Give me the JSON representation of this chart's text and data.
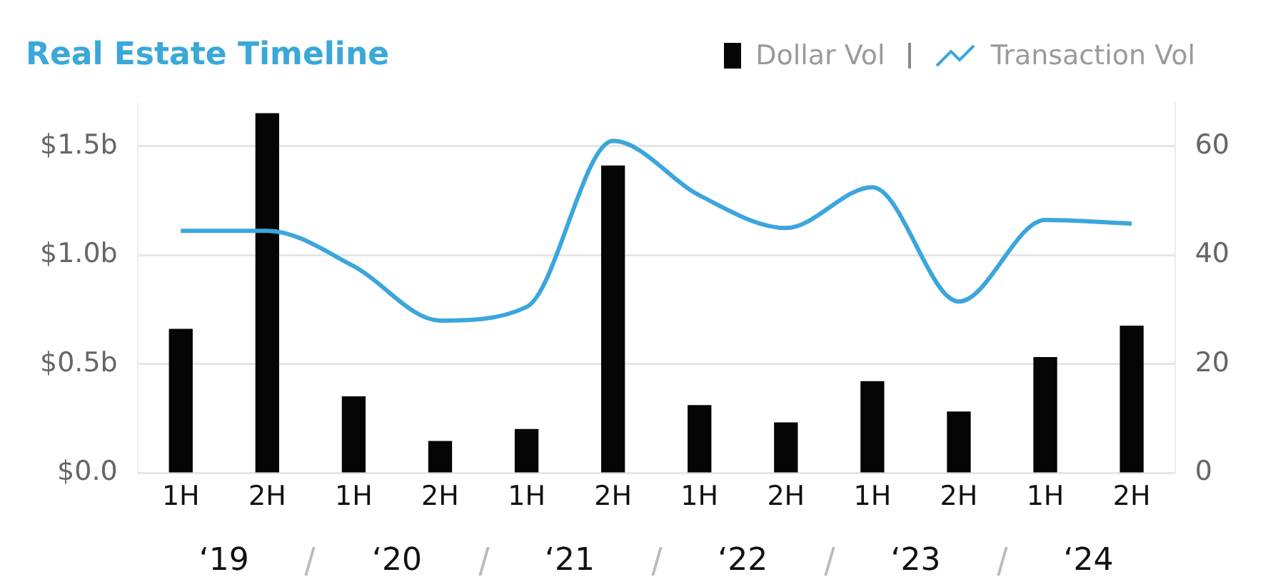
{
  "chart_data": {
    "type": "bar",
    "title": "Real Estate Timeline",
    "categories": [
      "1H",
      "2H",
      "1H",
      "2H",
      "1H",
      "2H",
      "1H",
      "2H",
      "1H",
      "2H",
      "1H",
      "2H"
    ],
    "series": [
      {
        "name": "Dollar Vol",
        "color": "#050505",
        "values": [
          0.66,
          1.65,
          0.35,
          0.145,
          0.2,
          1.41,
          0.31,
          0.23,
          0.42,
          0.28,
          0.53,
          0.675
        ]
      },
      {
        "name": "Transaction Vol",
        "type": "line",
        "axis": "y2",
        "color": "#3ba6dc",
        "values": [
          44.5,
          44.5,
          38,
          28,
          30.5,
          61,
          51,
          45,
          52.5,
          31.5,
          46.5,
          45.8
        ]
      }
    ],
    "annotations": [
      "‘19",
      "‘20",
      "‘21",
      "‘22",
      "‘23",
      "‘24"
    ],
    "ylim": [
      0,
      1.7
    ],
    "yticks": [
      {
        "value": 0,
        "label": "$0.0"
      },
      {
        "value": 0.5,
        "label": "$0.5b"
      },
      {
        "value": 1,
        "label": "$1.0b"
      },
      {
        "value": 1.5,
        "label": "$1.5b"
      }
    ],
    "y2lim": [
      0,
      68
    ],
    "y2ticks": [
      0,
      20,
      40,
      60
    ],
    "grid": "y",
    "legend": "top right",
    "marker": "none",
    "line_style": "solid"
  }
}
